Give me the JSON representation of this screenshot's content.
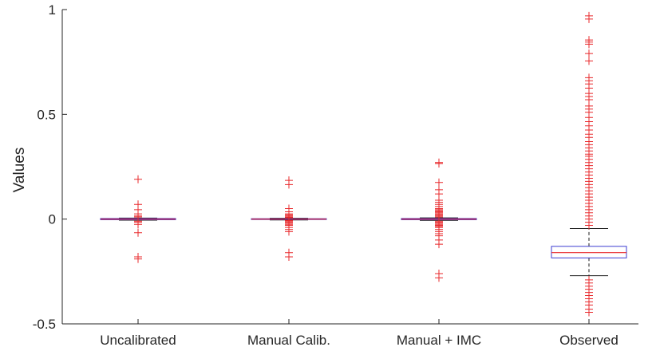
{
  "chart_data": {
    "type": "box",
    "title": "",
    "xlabel": "",
    "ylabel": "Values",
    "ylim": [
      -0.5,
      1.0
    ],
    "yticks": [
      {
        "value": -0.5,
        "label": "-0.5"
      },
      {
        "value": 0,
        "label": "0"
      },
      {
        "value": 0.5,
        "label": "0.5"
      },
      {
        "value": 1,
        "label": "1"
      }
    ],
    "grid": false,
    "categories": [
      "Uncalibrated",
      "Manual Calib.",
      "Manual + IMC",
      "Observed"
    ],
    "boxes": [
      {
        "name": "Uncalibrated",
        "q1": -0.003,
        "median": 0.0,
        "q3": 0.003,
        "whisker_low": -0.005,
        "whisker_high": 0.005,
        "outliers": [
          0.19,
          0.07,
          0.045,
          0.025,
          0.015,
          0.01,
          -0.01,
          -0.015,
          -0.025,
          -0.065,
          -0.18,
          -0.19
        ]
      },
      {
        "name": "Manual Calib.",
        "q1": -0.002,
        "median": 0.0,
        "q3": 0.002,
        "whisker_low": -0.004,
        "whisker_high": 0.004,
        "outliers": [
          0.185,
          0.165,
          0.05,
          0.035,
          0.025,
          0.02,
          0.015,
          0.01,
          0.007,
          -0.007,
          -0.01,
          -0.015,
          -0.02,
          -0.025,
          -0.03,
          -0.04,
          -0.05,
          -0.06,
          -0.16,
          -0.18
        ]
      },
      {
        "name": "Manual + IMC",
        "q1": -0.003,
        "median": 0.0,
        "q3": 0.003,
        "whisker_low": -0.006,
        "whisker_high": 0.006,
        "outliers": [
          0.27,
          0.265,
          0.175,
          0.14,
          0.12,
          0.09,
          0.08,
          0.07,
          0.06,
          0.05,
          0.045,
          0.04,
          0.035,
          0.03,
          0.025,
          0.02,
          0.015,
          0.01,
          -0.01,
          -0.015,
          -0.02,
          -0.025,
          -0.03,
          -0.035,
          -0.04,
          -0.05,
          -0.06,
          -0.07,
          -0.08,
          -0.1,
          -0.12,
          -0.26,
          -0.28
        ]
      },
      {
        "name": "Observed",
        "q1": -0.185,
        "median": -0.16,
        "q3": -0.13,
        "whisker_low": -0.27,
        "whisker_high": -0.045,
        "outliers": [
          0.97,
          0.955,
          0.855,
          0.845,
          0.835,
          0.79,
          0.755,
          0.675,
          0.66,
          0.645,
          0.625,
          0.6,
          0.585,
          0.57,
          0.54,
          0.525,
          0.51,
          0.485,
          0.465,
          0.445,
          0.425,
          0.405,
          0.39,
          0.37,
          0.355,
          0.34,
          0.325,
          0.31,
          0.3,
          0.285,
          0.27,
          0.255,
          0.24,
          0.225,
          0.21,
          0.195,
          0.18,
          0.165,
          0.15,
          0.135,
          0.12,
          0.105,
          0.09,
          0.075,
          0.06,
          0.045,
          0.03,
          0.015,
          0.0,
          -0.015,
          -0.03,
          -0.29,
          -0.305,
          -0.32,
          -0.335,
          -0.35,
          -0.365,
          -0.38,
          -0.395,
          -0.41,
          -0.43,
          -0.445
        ]
      }
    ],
    "colors": {
      "box": "#3b3bd1",
      "median": "#e8282b",
      "whisker": "#1a1a1a",
      "outlier": "#e8282b",
      "axis": "#262626"
    }
  }
}
